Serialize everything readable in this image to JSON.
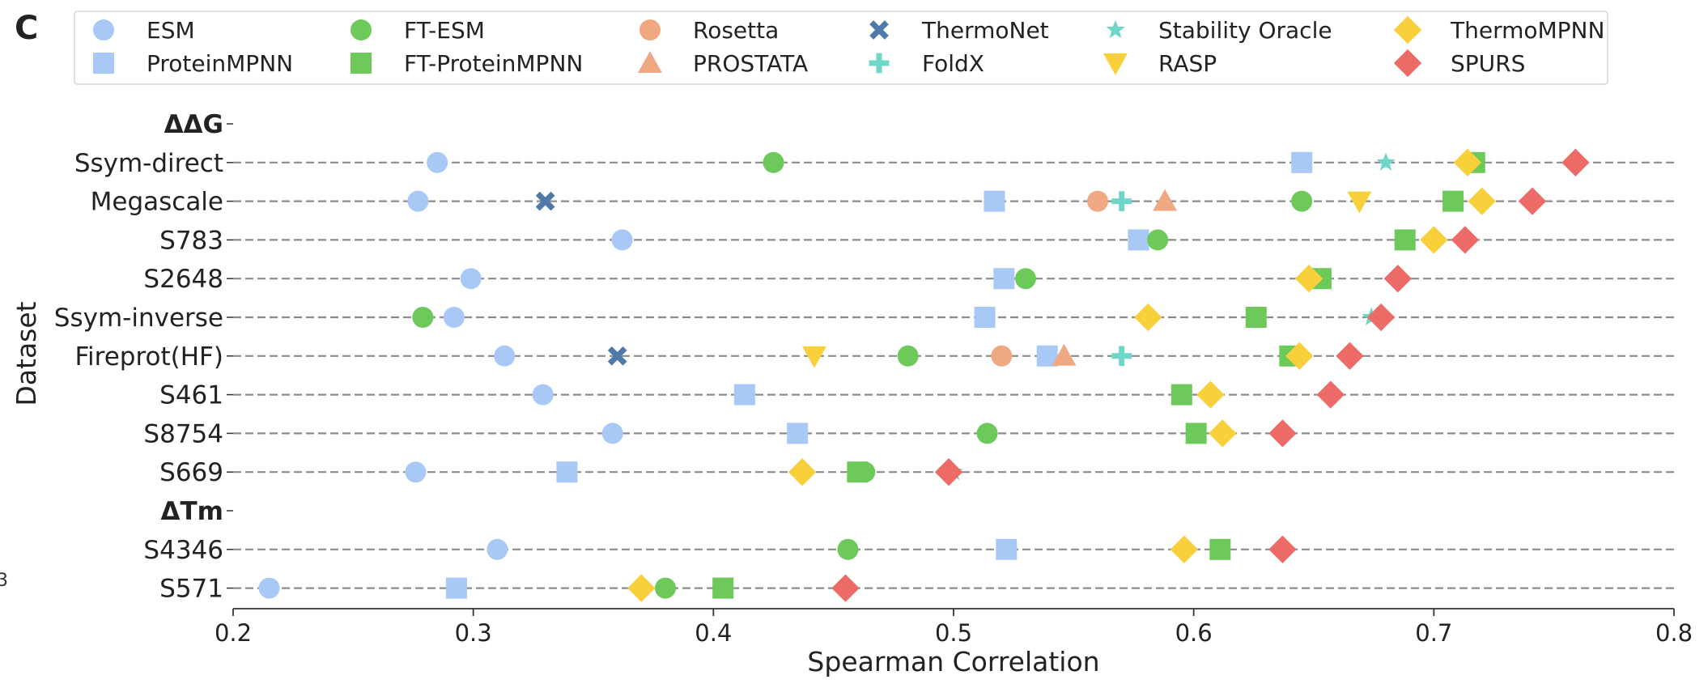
{
  "panel_label": "C",
  "stray_label": "3",
  "chart_data": {
    "type": "scatter",
    "title": "",
    "xlabel": "Spearman Correlation",
    "ylabel": "Dataset",
    "xlim": [
      0.2,
      0.8
    ],
    "xticks": [
      0.2,
      0.3,
      0.4,
      0.5,
      0.6,
      0.7,
      0.8
    ],
    "xtick_labels": [
      "0.2",
      "0.3",
      "0.4",
      "0.5",
      "0.6",
      "0.7",
      "0.8"
    ],
    "grid": "dashed horizontal lines per dataset",
    "legend_position": "top",
    "categories": [
      "ΔΔG",
      "Ssym-direct",
      "Megascale",
      "S783",
      "S2648",
      "Ssym-inverse",
      "Fireprot(HF)",
      "S461",
      "S8754",
      "S669",
      "ΔTm",
      "S4346",
      "S571"
    ],
    "group_headers": [
      "ΔΔG",
      "ΔTm"
    ],
    "series": [
      {
        "name": "ESM",
        "marker": "circle",
        "color": "#a8c8f5",
        "values": {
          "Ssym-direct": 0.285,
          "Megascale": 0.277,
          "S783": 0.362,
          "S2648": 0.299,
          "Ssym-inverse": 0.292,
          "Fireprot(HF)": 0.313,
          "S461": 0.329,
          "S8754": 0.358,
          "S669": 0.276,
          "S4346": 0.31,
          "S571": 0.215
        }
      },
      {
        "name": "ProteinMPNN",
        "marker": "square",
        "color": "#a8c8f5",
        "values": {
          "Ssym-direct": 0.645,
          "Megascale": 0.517,
          "S783": 0.577,
          "S2648": 0.521,
          "Ssym-inverse": 0.513,
          "Fireprot(HF)": 0.539,
          "S461": 0.413,
          "S8754": 0.435,
          "S669": 0.339,
          "S4346": 0.522,
          "S571": 0.293
        }
      },
      {
        "name": "FT-ESM",
        "marker": "circle",
        "color": "#6cc95a",
        "values": {
          "Ssym-direct": 0.425,
          "Megascale": 0.645,
          "S783": 0.585,
          "S2648": 0.53,
          "Ssym-inverse": 0.279,
          "Fireprot(HF)": 0.481,
          "S8754": 0.514,
          "S669": 0.463,
          "S4346": 0.456,
          "S571": 0.38
        }
      },
      {
        "name": "FT-ProteinMPNN",
        "marker": "square",
        "color": "#6cc95a",
        "values": {
          "Ssym-direct": 0.717,
          "Megascale": 0.708,
          "S783": 0.688,
          "S2648": 0.653,
          "Ssym-inverse": 0.626,
          "Fireprot(HF)": 0.64,
          "S461": 0.595,
          "S8754": 0.601,
          "S669": 0.46,
          "S4346": 0.611,
          "S571": 0.404
        }
      },
      {
        "name": "Rosetta",
        "marker": "circle",
        "color": "#f0a882",
        "values": {
          "Megascale": 0.56,
          "Fireprot(HF)": 0.52
        }
      },
      {
        "name": "PROSTATA",
        "marker": "triangle-up",
        "color": "#f0a882",
        "values": {
          "Megascale": 0.588,
          "Fireprot(HF)": 0.546
        }
      },
      {
        "name": "ThermoNet",
        "marker": "x",
        "color": "#4f79a8",
        "values": {
          "Megascale": 0.33,
          "Fireprot(HF)": 0.36
        }
      },
      {
        "name": "FoldX",
        "marker": "plus",
        "color": "#6fd6c8",
        "values": {
          "Megascale": 0.57,
          "Fireprot(HF)": 0.57
        }
      },
      {
        "name": "Stability Oracle",
        "marker": "star",
        "color": "#6fd6c8",
        "values": {
          "Ssym-direct": 0.68,
          "Ssym-inverse": 0.674,
          "S669": 0.5
        }
      },
      {
        "name": "RASP",
        "marker": "triangle-down",
        "color": "#f7d03c",
        "values": {
          "Megascale": 0.669,
          "Fireprot(HF)": 0.442
        }
      },
      {
        "name": "ThermoMPNN",
        "marker": "diamond",
        "color": "#f7d03c",
        "values": {
          "Ssym-direct": 0.714,
          "Megascale": 0.72,
          "S783": 0.7,
          "S2648": 0.648,
          "Ssym-inverse": 0.581,
          "Fireprot(HF)": 0.644,
          "S461": 0.607,
          "S8754": 0.612,
          "S669": 0.437,
          "S4346": 0.596,
          "S571": 0.37
        }
      },
      {
        "name": "SPURS",
        "marker": "diamond",
        "color": "#ec6b67",
        "values": {
          "Ssym-direct": 0.759,
          "Megascale": 0.741,
          "S783": 0.713,
          "S2648": 0.685,
          "Ssym-inverse": 0.678,
          "Fireprot(HF)": 0.665,
          "S461": 0.657,
          "S8754": 0.637,
          "S669": 0.498,
          "S4346": 0.637,
          "S571": 0.455
        }
      }
    ]
  }
}
